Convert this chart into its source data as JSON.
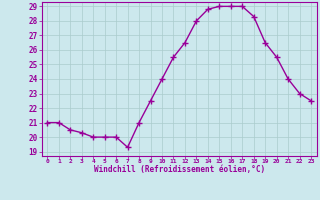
{
  "x": [
    0,
    1,
    2,
    3,
    4,
    5,
    6,
    7,
    8,
    9,
    10,
    11,
    12,
    13,
    14,
    15,
    16,
    17,
    18,
    19,
    20,
    21,
    22,
    23
  ],
  "y": [
    21.0,
    21.0,
    20.5,
    20.3,
    20.0,
    20.0,
    20.0,
    19.3,
    21.0,
    22.5,
    24.0,
    25.5,
    26.5,
    28.0,
    28.8,
    29.0,
    29.0,
    29.0,
    28.3,
    26.5,
    25.5,
    24.0,
    23.0,
    22.5
  ],
  "line_color": "#990099",
  "marker": "+",
  "markersize": 4,
  "linewidth": 1.0,
  "bg_color": "#cce8ed",
  "grid_color": "#aacccc",
  "xlabel": "Windchill (Refroidissement éolien,°C)",
  "xlabel_color": "#990099",
  "tick_color": "#990099",
  "spine_color": "#990099",
  "ylim_min": 19,
  "ylim_max": 29,
  "yticks": [
    19,
    20,
    21,
    22,
    23,
    24,
    25,
    26,
    27,
    28,
    29
  ],
  "xticks": [
    0,
    1,
    2,
    3,
    4,
    5,
    6,
    7,
    8,
    9,
    10,
    11,
    12,
    13,
    14,
    15,
    16,
    17,
    18,
    19,
    20,
    21,
    22,
    23
  ]
}
